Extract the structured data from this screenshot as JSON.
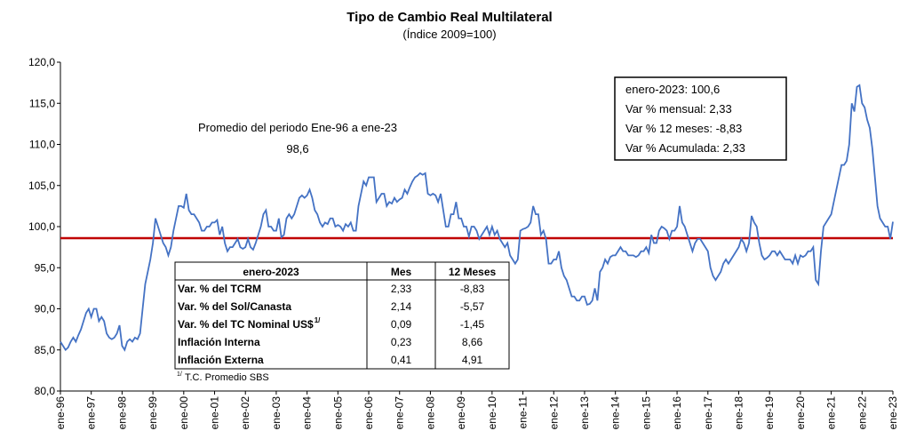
{
  "chart_data": {
    "type": "line",
    "title": "Tipo de Cambio Real Multilateral",
    "subtitle": "(Índice 2009=100)",
    "categories": [
      "ene-96",
      null,
      null,
      null,
      null,
      null,
      null,
      null,
      null,
      null,
      null,
      null,
      "ene-97",
      null,
      null,
      null,
      null,
      null,
      null,
      null,
      null,
      null,
      null,
      null,
      "ene-98",
      null,
      null,
      null,
      null,
      null,
      null,
      null,
      null,
      null,
      null,
      null,
      "ene-99",
      null,
      null,
      null,
      null,
      null,
      null,
      null,
      null,
      null,
      null,
      null,
      "ene-00",
      null,
      null,
      null,
      null,
      null,
      null,
      null,
      null,
      null,
      null,
      null,
      "ene-01",
      null,
      null,
      null,
      null,
      null,
      null,
      null,
      null,
      null,
      null,
      null,
      "ene-02",
      null,
      null,
      null,
      null,
      null,
      null,
      null,
      null,
      null,
      null,
      null,
      "ene-03",
      null,
      null,
      null,
      null,
      null,
      null,
      null,
      null,
      null,
      null,
      null,
      "ene-04",
      null,
      null,
      null,
      null,
      null,
      null,
      null,
      null,
      null,
      null,
      null,
      "ene-05",
      null,
      null,
      null,
      null,
      null,
      null,
      null,
      null,
      null,
      null,
      null,
      "ene-06",
      null,
      null,
      null,
      null,
      null,
      null,
      null,
      null,
      null,
      null,
      null,
      "ene-07",
      null,
      null,
      null,
      null,
      null,
      null,
      null,
      null,
      null,
      null,
      null,
      "ene-08",
      null,
      null,
      null,
      null,
      null,
      null,
      null,
      null,
      null,
      null,
      null,
      "ene-09",
      null,
      null,
      null,
      null,
      null,
      null,
      null,
      null,
      null,
      null,
      null,
      "ene-10",
      null,
      null,
      null,
      null,
      null,
      null,
      null,
      null,
      null,
      null,
      null,
      "ene-11",
      null,
      null,
      null,
      null,
      null,
      null,
      null,
      null,
      null,
      null,
      null,
      "ene-12",
      null,
      null,
      null,
      null,
      null,
      null,
      null,
      null,
      null,
      null,
      null,
      "ene-13",
      null,
      null,
      null,
      null,
      null,
      null,
      null,
      null,
      null,
      null,
      null,
      "ene-14",
      null,
      null,
      null,
      null,
      null,
      null,
      null,
      null,
      null,
      null,
      null,
      "ene-15",
      null,
      null,
      null,
      null,
      null,
      null,
      null,
      null,
      null,
      null,
      null,
      "ene-16",
      null,
      null,
      null,
      null,
      null,
      null,
      null,
      null,
      null,
      null,
      null,
      "ene-17",
      null,
      null,
      null,
      null,
      null,
      null,
      null,
      null,
      null,
      null,
      null,
      "ene-18",
      null,
      null,
      null,
      null,
      null,
      null,
      null,
      null,
      null,
      null,
      null,
      "ene-19",
      null,
      null,
      null,
      null,
      null,
      null,
      null,
      null,
      null,
      null,
      null,
      "ene-20",
      null,
      null,
      null,
      null,
      null,
      null,
      null,
      null,
      null,
      null,
      null,
      "ene-21",
      null,
      null,
      null,
      null,
      null,
      null,
      null,
      null,
      null,
      null,
      null,
      "ene-22",
      null,
      null,
      null,
      null,
      null,
      null,
      null,
      null,
      null,
      null,
      null,
      "ene-23"
    ],
    "series": [
      {
        "color": "#4472c4",
        "values": [
          86,
          85.5,
          85,
          85.3,
          86,
          86.5,
          86,
          86.8,
          87.5,
          88.5,
          89.5,
          90,
          89,
          90,
          90,
          88.5,
          89,
          88.5,
          87,
          86.5,
          86.3,
          86.5,
          87,
          88,
          85.5,
          85,
          86,
          86.3,
          86,
          86.5,
          86.3,
          87,
          90,
          93,
          94.5,
          96,
          98,
          101,
          100,
          99,
          98,
          97.5,
          96.5,
          97.5,
          99.5,
          101,
          102.5,
          102.5,
          102.3,
          104,
          102,
          101.5,
          101.5,
          101,
          100.5,
          99.5,
          99.5,
          100,
          100,
          100.5,
          100.5,
          100.8,
          99,
          100,
          98,
          97,
          97.5,
          97.5,
          98,
          98.5,
          97.5,
          97.3,
          97.5,
          98.5,
          97.5,
          97.2,
          98,
          99,
          100,
          101.5,
          102,
          100,
          100,
          99.5,
          99.5,
          101,
          98.7,
          99,
          101,
          101.5,
          101,
          101.5,
          102.5,
          103.5,
          103.8,
          103.5,
          103.8,
          104.5,
          103.5,
          102,
          101.5,
          100.5,
          100,
          100.5,
          100.3,
          101,
          101,
          100,
          100.2,
          100,
          99.5,
          100.3,
          100,
          100.5,
          99.5,
          99.5,
          102.5,
          104,
          105.5,
          105,
          106,
          106,
          106,
          103,
          103.5,
          104,
          104,
          102.5,
          103,
          102.8,
          103.5,
          103,
          103.3,
          103.5,
          104.5,
          104,
          104.8,
          105.5,
          106,
          106.2,
          106.5,
          106.3,
          106.5,
          104,
          103.8,
          104,
          103.8,
          103,
          104,
          102,
          100,
          100,
          101.5,
          101.5,
          103,
          101,
          101,
          100,
          100,
          98.8,
          100,
          100,
          99.5,
          98.5,
          99,
          99.5,
          100,
          99,
          100,
          99,
          99.5,
          98.5,
          98,
          97.5,
          98,
          96.5,
          96,
          95.5,
          96,
          99.5,
          99.7,
          99.8,
          100,
          100.5,
          102.5,
          101.5,
          101.5,
          99,
          99.5,
          98.5,
          95.5,
          95.5,
          96,
          96,
          97,
          95,
          94,
          93.5,
          92.5,
          91.5,
          91.5,
          91,
          91,
          91.5,
          91.5,
          90.5,
          90.6,
          91,
          92.5,
          91,
          94.5,
          95,
          96,
          95.5,
          96.3,
          96.5,
          96.5,
          97,
          97.5,
          97,
          97,
          96.5,
          96.5,
          96.5,
          96.3,
          96.5,
          97,
          97,
          97.5,
          96.8,
          99,
          98,
          98,
          99.5,
          100,
          99.8,
          99.5,
          98.5,
          99.5,
          99.5,
          100,
          102.5,
          100.5,
          100,
          99,
          98,
          97,
          98,
          98.5,
          98.5,
          98,
          97.5,
          97,
          95,
          94,
          93.5,
          94,
          94.5,
          95.5,
          96,
          95.5,
          96,
          96.5,
          97,
          97.5,
          98.5,
          98,
          97,
          98,
          101.3,
          100.5,
          100,
          98,
          96.5,
          96,
          96.2,
          96.5,
          97,
          97,
          96.5,
          97,
          96.5,
          96,
          96,
          96,
          95.5,
          96.5,
          95.5,
          96.5,
          96.3,
          96.5,
          97,
          97,
          97.5,
          93.5,
          93,
          97,
          100,
          100.5,
          101,
          101.5,
          103,
          104.5,
          106,
          107.5,
          107.5,
          108,
          110,
          115,
          114,
          117,
          117.2,
          115,
          114.5,
          113,
          112,
          109.5,
          106,
          102.5,
          101,
          100.5,
          100,
          100,
          98.5,
          100.6
        ]
      }
    ],
    "ylim": [
      80,
      120
    ],
    "yticks": [
      {
        "value": 80,
        "label": "80,0"
      },
      {
        "value": 85,
        "label": "85,0"
      },
      {
        "value": 90,
        "label": "90,0"
      },
      {
        "value": 95,
        "label": "95,0"
      },
      {
        "value": 100,
        "label": "100,0"
      },
      {
        "value": 105,
        "label": "105,0"
      },
      {
        "value": 110,
        "label": "110,0"
      },
      {
        "value": 115,
        "label": "115,0"
      },
      {
        "value": 120,
        "label": "120,0"
      }
    ],
    "reference_line": {
      "value": 98.6,
      "label": "98,6",
      "color": "#c00000",
      "text": "Promedio del periodo Ene-96 a ene-23"
    },
    "info_box": [
      "enero-2023: 100,6",
      "Var % mensual: 2,33",
      "Var % 12 meses: -8,83",
      "Var % Acumulada: 2,33"
    ],
    "table": {
      "header": [
        "enero-2023",
        "Mes",
        "12 Meses"
      ],
      "rows": [
        [
          "Var. % del TCRM",
          "2,33",
          "-8,83"
        ],
        [
          "Var. % del Sol/Canasta",
          "2,14",
          "-5,57"
        ],
        [
          "Var. % del TC Nominal US$",
          "0,09",
          "-1,45"
        ],
        [
          "Inflación Interna",
          "0,23",
          "8,66"
        ],
        [
          "Inflación Externa",
          "0,41",
          "4,91"
        ]
      ],
      "row_superscript": "1/",
      "footnote_mark": "1/",
      "footnote": "T.C. Promedio SBS"
    }
  }
}
